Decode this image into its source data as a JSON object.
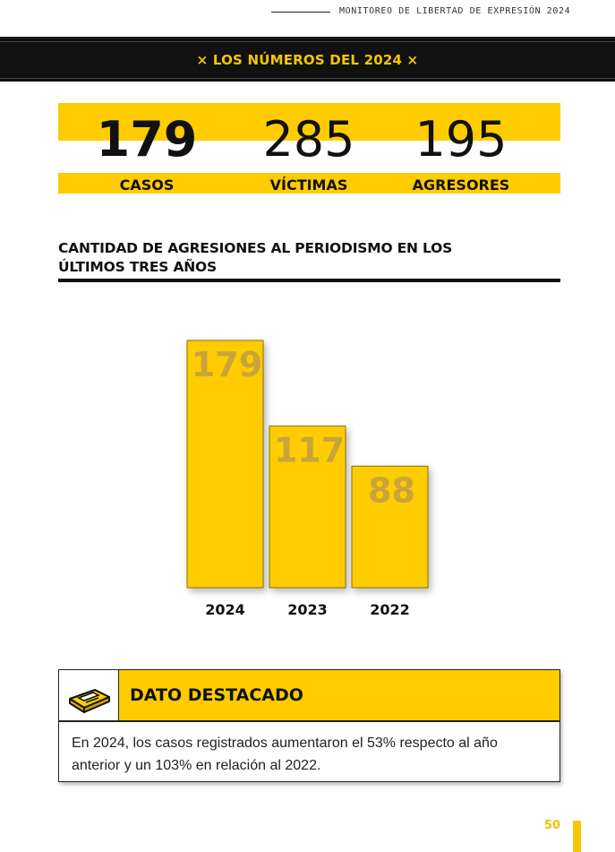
{
  "running_header": "MONITOREO DE LIBERTAD DE EXPRESIÓN 2024",
  "banner_title": "× LOS NÚMEROS DEL 2024 ×",
  "stats": [
    {
      "value": "179",
      "label": "CASOS"
    },
    {
      "value": "285",
      "label": "VÍCTIMAS"
    },
    {
      "value": "195",
      "label": "AGRESORES"
    }
  ],
  "chart_title_line1": "CANTIDAD DE AGRESIONES AL PERIODISMO EN LOS",
  "chart_title_line2": "ÚLTIMOS TRES AÑOS",
  "chart_data": {
    "type": "bar",
    "categories": [
      "2024",
      "2023",
      "2022"
    ],
    "values": [
      179,
      117,
      88
    ],
    "bar_color": "#ffcc00",
    "label_color": "#c9a43a"
  },
  "dato": {
    "title": "DATO DESTACADO",
    "icon": "keyboard-icon",
    "line1": "En 2024, los casos registrados aumentaron el 53% respecto al año",
    "line2": "anterior y un 103% en relación al 2022."
  },
  "page_number": "50",
  "colors": {
    "accent": "#ffcc00",
    "dark": "#111111"
  }
}
